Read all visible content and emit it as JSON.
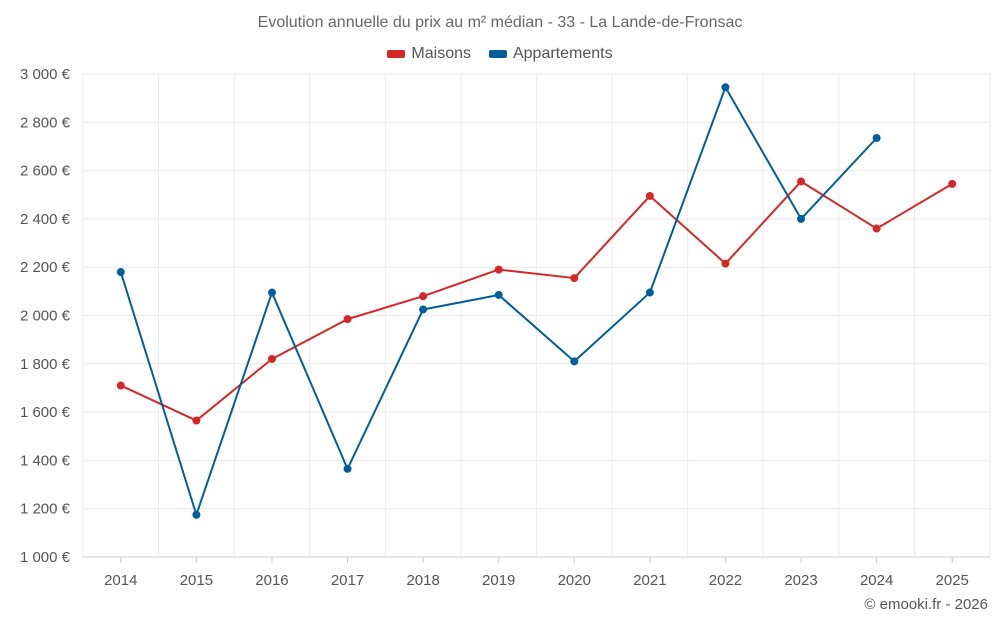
{
  "chart_data": {
    "type": "line",
    "title": "Evolution annuelle du prix au m² médian - 33 - La Lande-de-Fronsac",
    "categories": [
      "2014",
      "2015",
      "2016",
      "2017",
      "2018",
      "2019",
      "2020",
      "2021",
      "2022",
      "2023",
      "2024",
      "2025"
    ],
    "series": [
      {
        "name": "Maisons",
        "color": "#d62728",
        "values": [
          1710,
          1565,
          1820,
          1985,
          2080,
          2190,
          2155,
          2495,
          2215,
          2555,
          2360,
          2545
        ]
      },
      {
        "name": "Appartements",
        "color": "#005f9a",
        "values": [
          2180,
          1175,
          2095,
          1365,
          2025,
          2085,
          1810,
          2095,
          2945,
          2400,
          2735,
          null
        ]
      }
    ],
    "ylim": [
      1000,
      3000
    ],
    "yticks": [
      "1 000 €",
      "1 200 €",
      "1 400 €",
      "1 600 €",
      "1 800 €",
      "2 000 €",
      "2 200 €",
      "2 400 €",
      "2 600 €",
      "2 800 €",
      "3 000 €"
    ],
    "ytick_values": [
      1000,
      1200,
      1400,
      1600,
      1800,
      2000,
      2200,
      2400,
      2600,
      2800,
      3000
    ],
    "xlabel": "",
    "ylabel": "",
    "grid": true,
    "legend_position": "top-center"
  },
  "copyright": "© emooki.fr - 2026"
}
